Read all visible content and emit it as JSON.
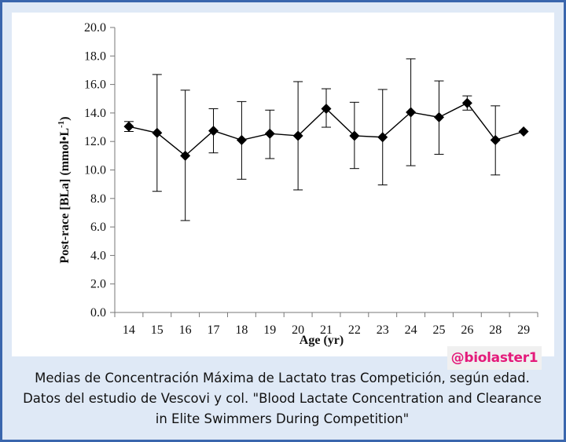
{
  "caption": "Medias de Concentración Máxima de Lactato tras Competición, según edad. Datos del estudio de Vescovi y col. \"Blood Lactate Concentration and Clearance in Elite Swimmers During Competition\"",
  "watermark": "@biolaster1",
  "colors": {
    "frame": "#3a66ad",
    "background": "#dfe9f6",
    "series": "#000000",
    "watermark": "#e41a7a"
  },
  "chart_data": {
    "type": "line",
    "title": "",
    "xlabel": "Age (yr)",
    "ylabel": "Post-race [BLa] (mmol•L",
    "ylabel_superscript": "-1",
    "ylabel_suffix": ")",
    "categories": [
      "14",
      "15",
      "16",
      "17",
      "18",
      "19",
      "20",
      "21",
      "22",
      "23",
      "24",
      "25",
      "26",
      "28",
      "29"
    ],
    "ylim": [
      0,
      20
    ],
    "yticks": [
      "0.0",
      "2.0",
      "4.0",
      "6.0",
      "8.0",
      "10.0",
      "12.0",
      "14.0",
      "16.0",
      "18.0",
      "20.0"
    ],
    "grid": false,
    "legend": "none",
    "marker": "diamond",
    "series": [
      {
        "values": [
          13.05,
          12.6,
          11.0,
          12.75,
          12.1,
          12.55,
          12.4,
          14.3,
          12.4,
          12.3,
          14.05,
          13.7,
          14.7,
          12.1,
          12.7
        ],
        "error_low": [
          12.7,
          8.5,
          6.45,
          11.2,
          9.35,
          10.8,
          8.6,
          13.0,
          10.1,
          8.95,
          10.3,
          11.1,
          14.2,
          9.65,
          null
        ],
        "error_high": [
          13.4,
          16.7,
          15.6,
          14.3,
          14.8,
          14.2,
          16.2,
          15.7,
          14.75,
          15.65,
          17.8,
          16.25,
          15.2,
          14.5,
          null
        ]
      }
    ]
  }
}
